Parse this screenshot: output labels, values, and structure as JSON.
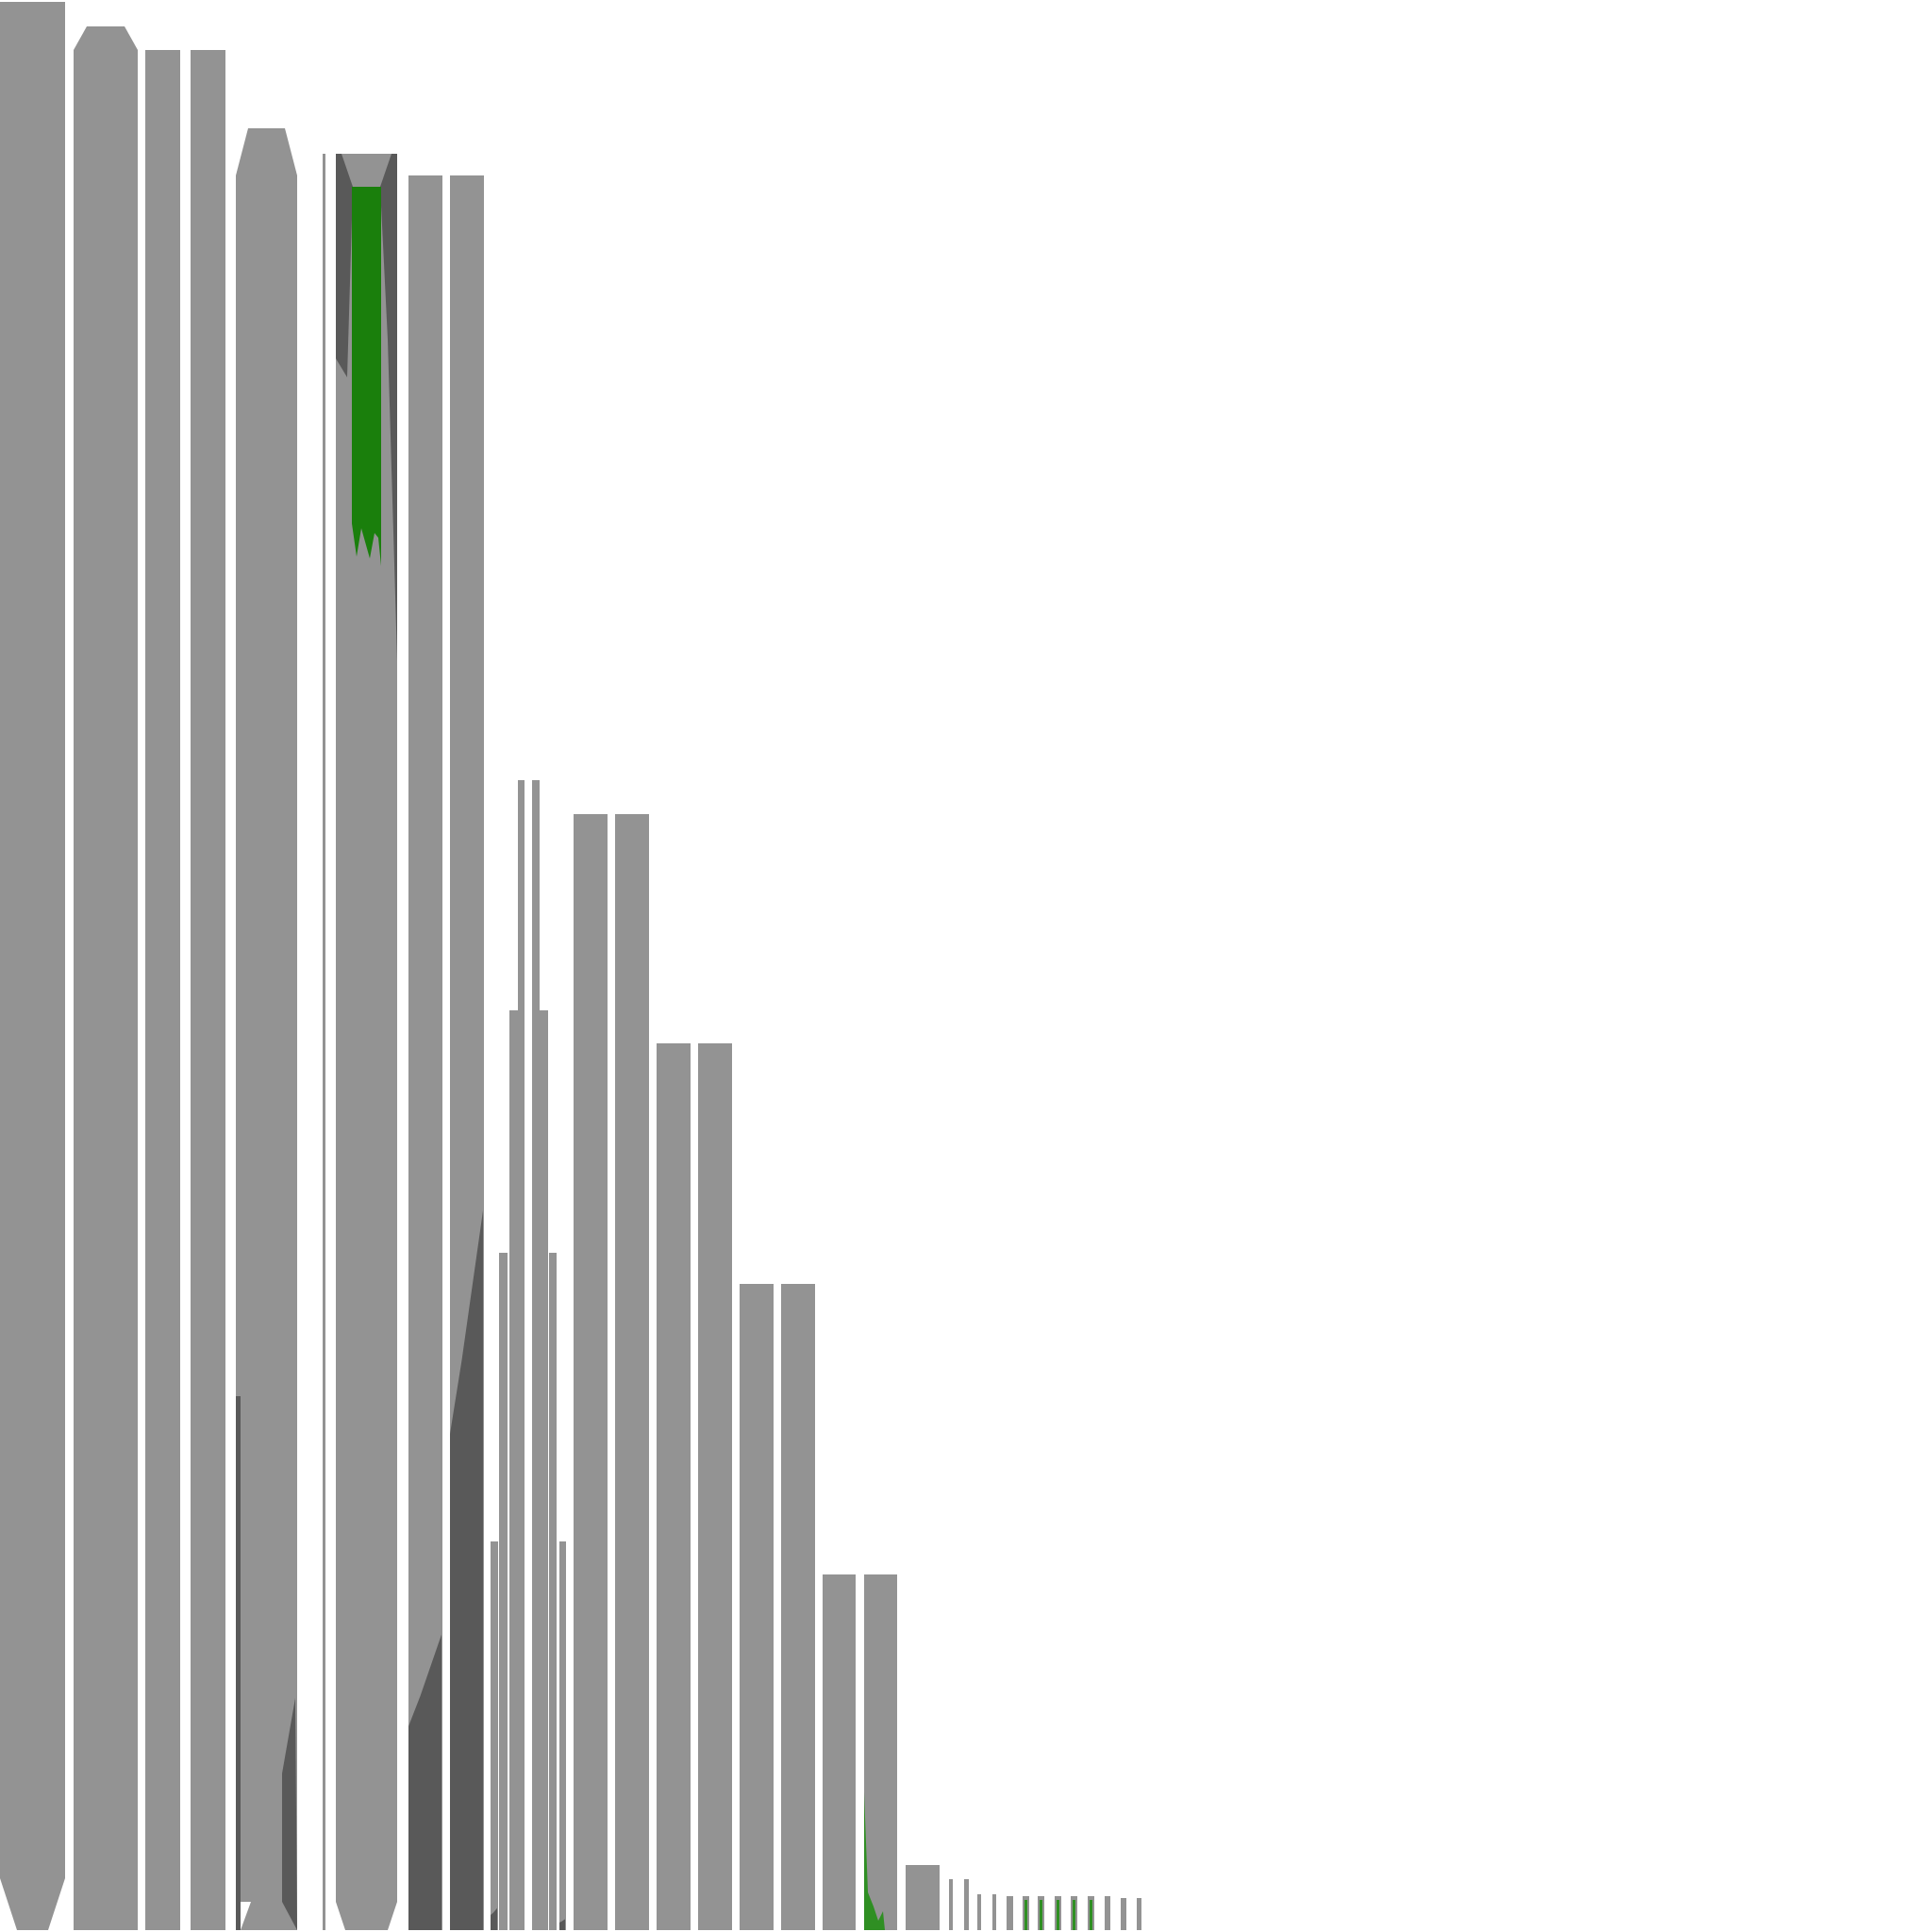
{
  "chart_data": {
    "type": "bar",
    "title": "",
    "xlabel": "",
    "ylabel": "",
    "grid": false,
    "legend": "none",
    "ylim": [
      0,
      2048
    ],
    "colors": {
      "bar": "#939393",
      "shadow": "#595959",
      "green": "#1a7f0c",
      "green_light": "#2f8f23"
    },
    "bars": [
      {
        "x0": 0,
        "x1": 69,
        "top": 2,
        "style": "taper-bottom",
        "taper": 55
      },
      {
        "x0": 78,
        "x1": 146,
        "top": 28,
        "style": "taper-top",
        "shoulder": 53
      },
      {
        "x0": 154,
        "x1": 191,
        "top": 53
      },
      {
        "x0": 202,
        "x1": 239,
        "top": 53
      },
      {
        "x0": 250,
        "x1": 315,
        "top": 136,
        "style": "taper-top",
        "shoulder": 186,
        "shade_bottom": 1880
      },
      {
        "x0": 342,
        "x1": 345,
        "top": 163
      },
      {
        "x0": 356,
        "x1": 421,
        "top": 163,
        "style": "green-center",
        "green_top": 198,
        "green_bottom": 600
      },
      {
        "x0": 433,
        "x1": 469,
        "top": 186,
        "shade_from": 1830
      },
      {
        "x0": 477,
        "x1": 513,
        "top": 186,
        "shade_from": 1520
      },
      {
        "x0": 520,
        "x1": 528,
        "top": 1634,
        "shade_from": 2030
      },
      {
        "x0": 529,
        "x1": 538,
        "top": 1328
      },
      {
        "x0": 540,
        "x1": 549,
        "top": 1071
      },
      {
        "x0": 549,
        "x1": 556,
        "top": 827
      },
      {
        "x0": 564,
        "x1": 572,
        "top": 827
      },
      {
        "x0": 572,
        "x1": 581,
        "top": 1071
      },
      {
        "x0": 582,
        "x1": 590,
        "top": 1328
      },
      {
        "x0": 593,
        "x1": 600,
        "top": 1634,
        "shade_from": 2038
      },
      {
        "x0": 608,
        "x1": 644,
        "top": 863
      },
      {
        "x0": 652,
        "x1": 688,
        "top": 863
      },
      {
        "x0": 696,
        "x1": 732,
        "top": 1106
      },
      {
        "x0": 740,
        "x1": 776,
        "top": 1106
      },
      {
        "x0": 784,
        "x1": 820,
        "top": 1361
      },
      {
        "x0": 828,
        "x1": 864,
        "top": 1361
      },
      {
        "x0": 872,
        "x1": 907,
        "top": 1669
      },
      {
        "x0": 916,
        "x1": 951,
        "top": 1669,
        "green_bottom_from": 1900
      },
      {
        "x0": 960,
        "x1": 996,
        "top": 1977
      },
      {
        "x0": 1006,
        "x1": 1010,
        "top": 1992
      },
      {
        "x0": 1022,
        "x1": 1027,
        "top": 1992
      },
      {
        "x0": 1036,
        "x1": 1040,
        "top": 2008
      },
      {
        "x0": 1052,
        "x1": 1056,
        "top": 2008
      },
      {
        "x0": 1067,
        "x1": 1074,
        "top": 2010
      },
      {
        "x0": 1084,
        "x1": 1091,
        "top": 2010,
        "accent": "green"
      },
      {
        "x0": 1100,
        "x1": 1107,
        "top": 2010,
        "accent": "green"
      },
      {
        "x0": 1118,
        "x1": 1125,
        "top": 2010,
        "accent": "green"
      },
      {
        "x0": 1135,
        "x1": 1142,
        "top": 2010,
        "accent": "green"
      },
      {
        "x0": 1153,
        "x1": 1160,
        "top": 2010,
        "accent": "green"
      },
      {
        "x0": 1171,
        "x1": 1177,
        "top": 2010
      },
      {
        "x0": 1188,
        "x1": 1194,
        "top": 2012
      },
      {
        "x0": 1205,
        "x1": 1210,
        "top": 2012
      }
    ]
  }
}
